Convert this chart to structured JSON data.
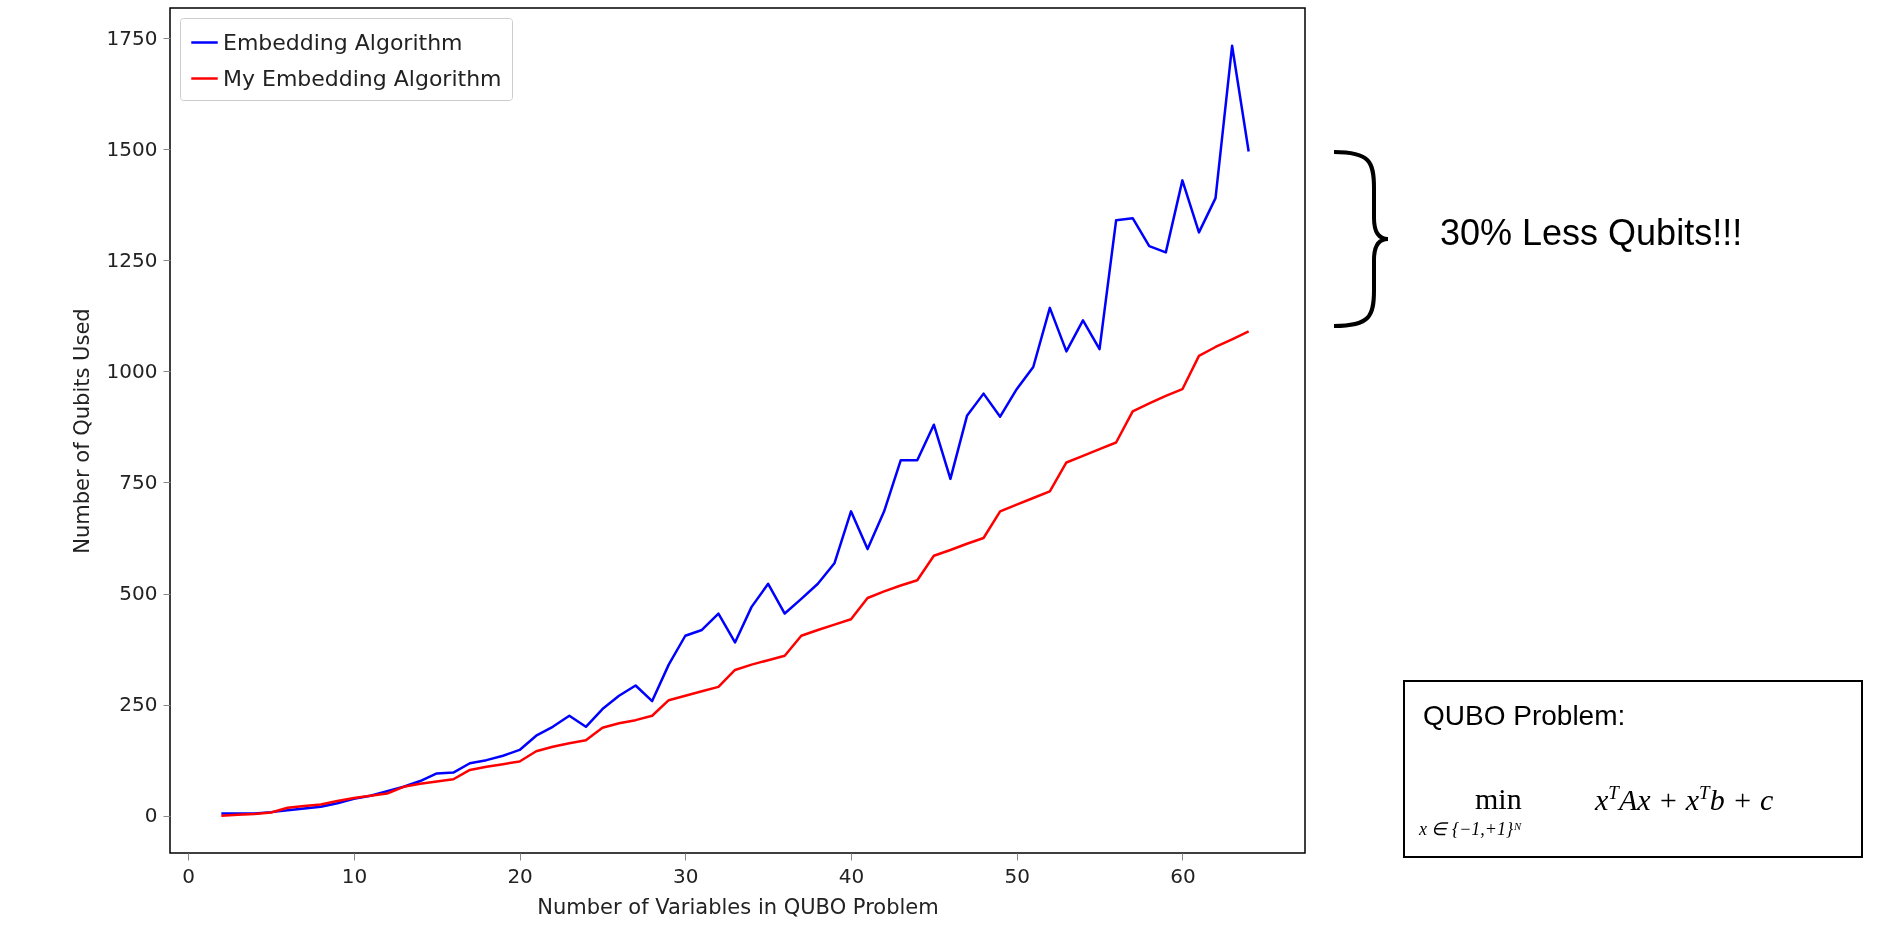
{
  "chart_data": {
    "type": "line",
    "xlabel": "Number of Variables in QUBO Problem",
    "ylabel": "Number of Qubits Used",
    "x": [
      2,
      3,
      4,
      5,
      6,
      7,
      8,
      9,
      10,
      11,
      12,
      13,
      14,
      15,
      16,
      17,
      18,
      19,
      20,
      21,
      22,
      23,
      24,
      25,
      26,
      27,
      28,
      29,
      30,
      31,
      32,
      33,
      34,
      35,
      36,
      37,
      38,
      39,
      40,
      41,
      42,
      43,
      44,
      45,
      46,
      47,
      48,
      49,
      50,
      51,
      52,
      53,
      54,
      55,
      56,
      57,
      58,
      59,
      60,
      61,
      62,
      63,
      64
    ],
    "series": [
      {
        "name": "Embedding Algorithm",
        "color": "#0000ff",
        "values": [
          5,
          5,
          5,
          8,
          12,
          16,
          20,
          28,
          38,
          45,
          55,
          65,
          78,
          95,
          97,
          118,
          125,
          135,
          148,
          180,
          200,
          225,
          200,
          240,
          270,
          293,
          258,
          340,
          405,
          418,
          455,
          390,
          470,
          522,
          455,
          488,
          522,
          568,
          685,
          600,
          685,
          800,
          800,
          880,
          758,
          900,
          950,
          898,
          960,
          1010,
          1143,
          1045,
          1115,
          1050,
          1340,
          1345,
          1282,
          1268,
          1430,
          1313,
          1390,
          1733,
          1495
        ]
      },
      {
        "name": "My Embedding Algorithm",
        "color": "#ff0000",
        "values": [
          0,
          2,
          4,
          7,
          18,
          22,
          25,
          33,
          40,
          45,
          50,
          65,
          72,
          77,
          82,
          103,
          110,
          116,
          122,
          145,
          155,
          163,
          170,
          198,
          208,
          215,
          225,
          260,
          270,
          280,
          290,
          328,
          340,
          350,
          360,
          405,
          418,
          430,
          442,
          490,
          505,
          518,
          530,
          585,
          598,
          612,
          625,
          685,
          700,
          715,
          730,
          795,
          810,
          825,
          840,
          910,
          928,
          945,
          960,
          1035,
          1055,
          1072,
          1090
        ]
      }
    ],
    "xlim": [
      -1.1,
      67.4
    ],
    "xticks": [
      0,
      10,
      20,
      30,
      40,
      50,
      60
    ],
    "ylim": [
      -84,
      1818
    ],
    "yticks": [
      0,
      250,
      500,
      750,
      1000,
      1250,
      1500,
      1750
    ],
    "legend": "top left",
    "annotations": [
      "30% Less Qubits!!!",
      "QUBO Problem:",
      "min",
      "x ∈ {−1,+1}ᴺ",
      "x$^{T}$Ax + x$^{T}$b + c"
    ]
  }
}
